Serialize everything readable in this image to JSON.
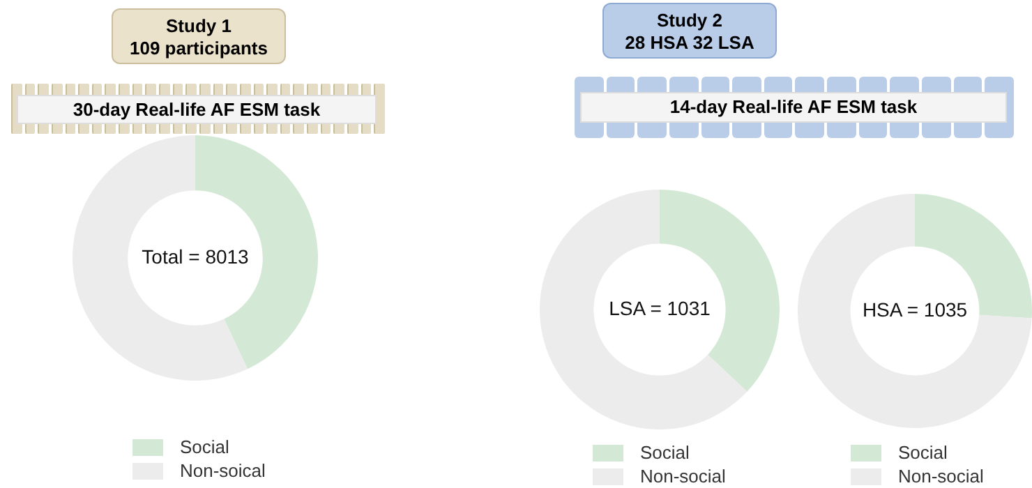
{
  "chart_data": [
    {
      "type": "donut",
      "title": "Study 1",
      "subtitle": "109 participants",
      "categories": [
        "Social",
        "Non-soical"
      ],
      "values": [
        43,
        57
      ],
      "colors": [
        "#d4e8d6",
        "#ececec"
      ],
      "legend": "bottom",
      "annotations": [
        "30-day Real-life AF ESM task",
        "Total = 8013"
      ]
    },
    {
      "type": "donut",
      "title": "Study 2",
      "subtitle": "28 HSA 32 LSA",
      "categories": [
        "Social",
        "Non-social"
      ],
      "values": [
        37,
        63
      ],
      "colors": [
        "#d4e8d6",
        "#ececec"
      ],
      "legend": "bottom",
      "annotations": [
        "14-day Real-life AF ESM task",
        "LSA = 1031"
      ]
    },
    {
      "type": "donut",
      "categories": [
        "Social",
        "Non-social"
      ],
      "values": [
        26,
        74
      ],
      "colors": [
        "#d4e8d6",
        "#ececec"
      ],
      "legend": "bottom",
      "annotations": [
        "HSA = 1035"
      ]
    }
  ]
}
